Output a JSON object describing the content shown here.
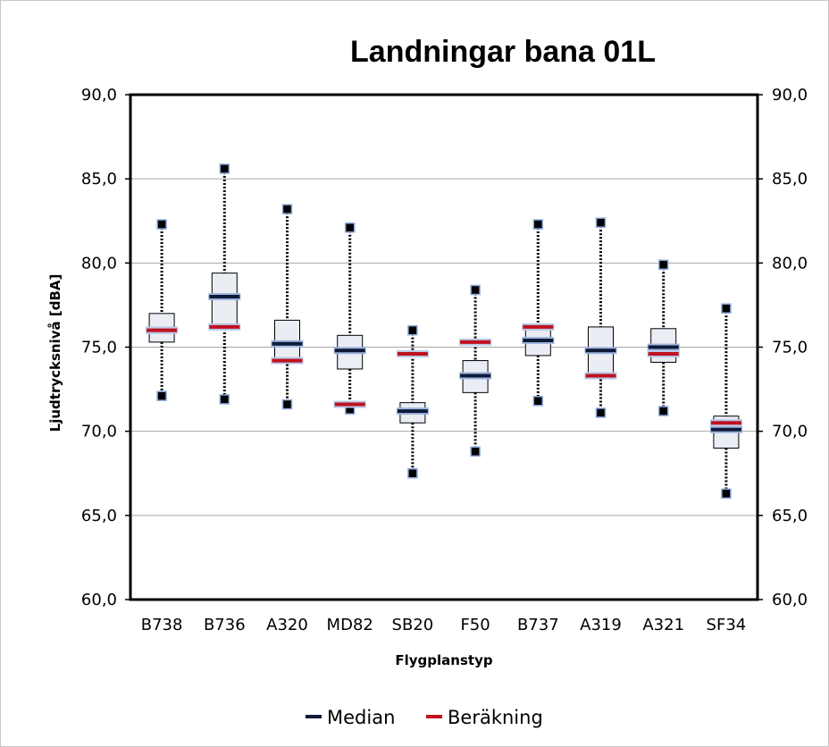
{
  "chart_data": {
    "type": "boxplot",
    "title": "Landningar bana 01L",
    "xlabel": "Flygplanstyp",
    "ylabel": "Ljudtrycksnivå [dBA]",
    "ylim": [
      60,
      90
    ],
    "yticks": [
      "60,0",
      "65,0",
      "70,0",
      "75,0",
      "80,0",
      "85,0",
      "90,0"
    ],
    "y2ticks": [
      "60,0",
      "65,0",
      "70,0",
      "75,0",
      "80,0",
      "85,0",
      "90,0"
    ],
    "grid": true,
    "categories": [
      "B738",
      "B736",
      "A320",
      "MD82",
      "SB20",
      "F50",
      "B737",
      "A319",
      "A321",
      "SF34"
    ],
    "min": [
      72.1,
      71.9,
      71.6,
      71.3,
      67.5,
      68.8,
      71.8,
      71.1,
      71.2,
      66.3
    ],
    "q1": [
      75.3,
      76.3,
      74.2,
      73.7,
      70.5,
      72.3,
      74.5,
      73.3,
      74.1,
      69.0
    ],
    "median": [
      76.0,
      78.0,
      75.2,
      74.8,
      71.2,
      73.3,
      75.4,
      74.8,
      75.0,
      70.1
    ],
    "q3": [
      77.0,
      79.4,
      76.6,
      75.7,
      71.7,
      74.2,
      76.2,
      76.2,
      76.1,
      70.9
    ],
    "max": [
      82.3,
      85.6,
      83.2,
      82.1,
      76.0,
      78.4,
      82.3,
      82.4,
      79.9,
      77.3
    ],
    "series": [
      {
        "name": "Median",
        "color": "#0d1a3a"
      },
      {
        "name": "Beräkning",
        "color": "#c0111f",
        "values": [
          76.0,
          76.2,
          74.2,
          71.6,
          74.6,
          75.3,
          76.2,
          73.3,
          74.6,
          70.5
        ]
      }
    ],
    "legend_position": "bottom"
  }
}
